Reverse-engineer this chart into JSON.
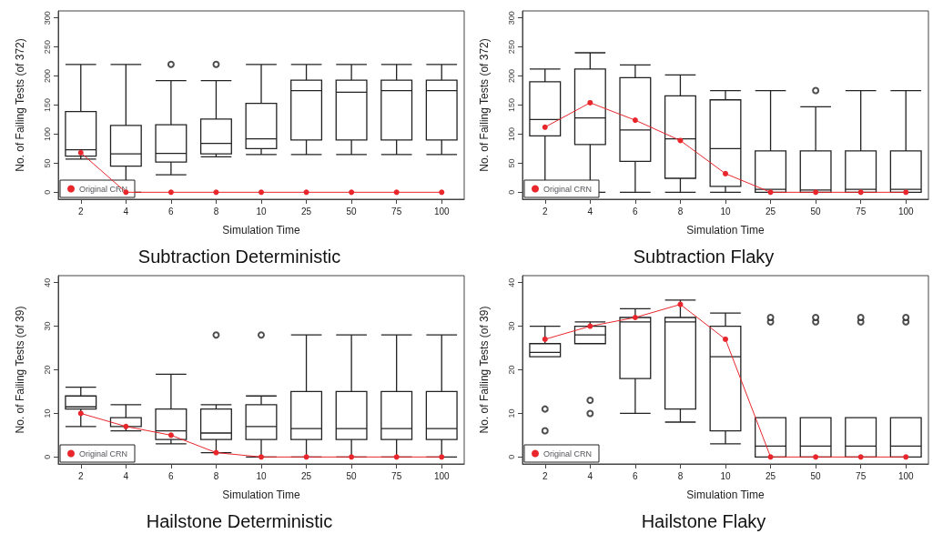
{
  "chart_data": [
    {
      "type": "box",
      "title": "Subtraction Deterministic",
      "xlabel": "Simulation Time",
      "ylabel": "No. of Failing Tests (of 372)",
      "categories": [
        "2",
        "4",
        "6",
        "8",
        "10",
        "25",
        "50",
        "75",
        "100"
      ],
      "ylim": [
        -12,
        312
      ],
      "yticks": [
        0,
        50,
        100,
        150,
        200,
        250,
        300
      ],
      "grid": false,
      "legend": "bottom left",
      "boxes": [
        {
          "low": 57,
          "q1": 62,
          "median": 73,
          "q3": 139,
          "high": 220
        },
        {
          "low": 0,
          "q1": 45,
          "median": 66,
          "q3": 115,
          "high": 220
        },
        {
          "low": 30,
          "q1": 52,
          "median": 67,
          "q3": 116,
          "high": 192,
          "outliers": [
            220
          ]
        },
        {
          "low": 61,
          "q1": 66,
          "median": 84,
          "q3": 126,
          "high": 192,
          "outliers": [
            220
          ]
        },
        {
          "low": 65,
          "q1": 75,
          "median": 92,
          "q3": 153,
          "high": 220
        },
        {
          "low": 65,
          "q1": 90,
          "median": 175,
          "q3": 193,
          "high": 220
        },
        {
          "low": 65,
          "q1": 90,
          "median": 172,
          "q3": 193,
          "high": 220
        },
        {
          "low": 65,
          "q1": 90,
          "median": 175,
          "q3": 193,
          "high": 220
        },
        {
          "low": 65,
          "q1": 90,
          "median": 175,
          "q3": 193,
          "high": 220
        }
      ],
      "series": [
        {
          "type": "line",
          "name": "Original CRN",
          "color": "#e8262c",
          "marker": "circle",
          "values": [
            68,
            0,
            0,
            0,
            0,
            0,
            0,
            0,
            0
          ]
        }
      ]
    },
    {
      "type": "box",
      "title": "Subtraction Flaky",
      "xlabel": "Simulation Time",
      "ylabel": "No. of Failing Tests (of 372)",
      "categories": [
        "2",
        "4",
        "6",
        "8",
        "10",
        "25",
        "50",
        "75",
        "100"
      ],
      "ylim": [
        -12,
        312
      ],
      "yticks": [
        0,
        50,
        100,
        150,
        200,
        250,
        300
      ],
      "grid": false,
      "legend": "bottom left",
      "boxes": [
        {
          "low": 0,
          "q1": 97,
          "median": 125,
          "q3": 190,
          "high": 212
        },
        {
          "low": 0,
          "q1": 82,
          "median": 128,
          "q3": 212,
          "high": 240
        },
        {
          "low": 0,
          "q1": 53,
          "median": 107,
          "q3": 197,
          "high": 219
        },
        {
          "low": 0,
          "q1": 24,
          "median": 92,
          "q3": 166,
          "high": 202
        },
        {
          "low": 0,
          "q1": 10,
          "median": 75,
          "q3": 159,
          "high": 175
        },
        {
          "low": 0,
          "q1": 0,
          "median": 5,
          "q3": 71,
          "high": 175
        },
        {
          "low": 0,
          "q1": 0,
          "median": 4,
          "q3": 71,
          "high": 147,
          "outliers": [
            175
          ]
        },
        {
          "low": 0,
          "q1": 0,
          "median": 5,
          "q3": 71,
          "high": 175
        },
        {
          "low": 0,
          "q1": 0,
          "median": 5,
          "q3": 71,
          "high": 175
        }
      ],
      "series": [
        {
          "type": "line",
          "name": "Original CRN",
          "color": "#e8262c",
          "marker": "circle",
          "values": [
            112,
            154,
            124,
            89,
            32,
            0,
            0,
            0,
            0
          ]
        }
      ]
    },
    {
      "type": "box",
      "title": "Hailstone Deterministic",
      "xlabel": "Simulation Time",
      "ylabel": "No. of Failing Tests (of 39)",
      "categories": [
        "2",
        "4",
        "6",
        "8",
        "10",
        "25",
        "50",
        "75",
        "100"
      ],
      "ylim": [
        -1.6,
        41.6
      ],
      "yticks": [
        0,
        10,
        20,
        30,
        40
      ],
      "grid": false,
      "legend": "bottom left",
      "boxes": [
        {
          "low": 7,
          "q1": 11,
          "median": 11.5,
          "q3": 14,
          "high": 16
        },
        {
          "low": 6,
          "q1": 7,
          "median": 9,
          "q3": 9,
          "high": 12
        },
        {
          "low": 3,
          "q1": 4,
          "median": 6,
          "q3": 11,
          "high": 19
        },
        {
          "low": 1,
          "q1": 4,
          "median": 5.5,
          "q3": 11,
          "high": 12,
          "outliers": [
            28
          ]
        },
        {
          "low": 0,
          "q1": 4,
          "median": 7,
          "q3": 12,
          "high": 14,
          "outliers": [
            28
          ]
        },
        {
          "low": 0,
          "q1": 4,
          "median": 6.5,
          "q3": 15,
          "high": 28
        },
        {
          "low": 0,
          "q1": 4,
          "median": 6.5,
          "q3": 15,
          "high": 28
        },
        {
          "low": 0,
          "q1": 4,
          "median": 6.5,
          "q3": 15,
          "high": 28
        },
        {
          "low": 0,
          "q1": 4,
          "median": 6.5,
          "q3": 15,
          "high": 28
        }
      ],
      "series": [
        {
          "type": "line",
          "name": "Original CRN",
          "color": "#e8262c",
          "marker": "circle",
          "values": [
            10,
            7,
            5,
            1,
            0,
            0,
            0,
            0,
            0
          ]
        }
      ]
    },
    {
      "type": "box",
      "title": "Hailstone Flaky",
      "xlabel": "Simulation Time",
      "ylabel": "No. of Failing Tests (of 39)",
      "categories": [
        "2",
        "4",
        "6",
        "8",
        "10",
        "25",
        "50",
        "75",
        "100"
      ],
      "ylim": [
        -1.6,
        41.6
      ],
      "yticks": [
        0,
        10,
        20,
        30,
        40
      ],
      "grid": false,
      "legend": "bottom left",
      "boxes": [
        {
          "low": 23,
          "q1": 23,
          "median": 24,
          "q3": 26,
          "high": 30,
          "outliers": [
            11,
            6
          ]
        },
        {
          "low": 26,
          "q1": 26,
          "median": 28,
          "q3": 30,
          "high": 31,
          "outliers": [
            13,
            10
          ]
        },
        {
          "low": 10,
          "q1": 18,
          "median": 31,
          "q3": 32,
          "high": 34
        },
        {
          "low": 8,
          "q1": 11,
          "median": 31,
          "q3": 32,
          "high": 36
        },
        {
          "low": 3,
          "q1": 6,
          "median": 23,
          "q3": 30,
          "high": 33
        },
        {
          "low": 0,
          "q1": 0,
          "median": 2.5,
          "q3": 9,
          "high": 9,
          "outliers": [
            31,
            32
          ]
        },
        {
          "low": 0,
          "q1": 0,
          "median": 2.5,
          "q3": 9,
          "high": 9,
          "outliers": [
            31,
            32
          ]
        },
        {
          "low": 0,
          "q1": 0,
          "median": 2.5,
          "q3": 9,
          "high": 9,
          "outliers": [
            31,
            32
          ]
        },
        {
          "low": 0,
          "q1": 0,
          "median": 2.5,
          "q3": 9,
          "high": 9,
          "outliers": [
            31,
            32
          ]
        }
      ],
      "series": [
        {
          "type": "line",
          "name": "Original CRN",
          "color": "#e8262c",
          "marker": "circle",
          "values": [
            27,
            30,
            32,
            35,
            27,
            0,
            0,
            0,
            0
          ]
        }
      ]
    }
  ]
}
